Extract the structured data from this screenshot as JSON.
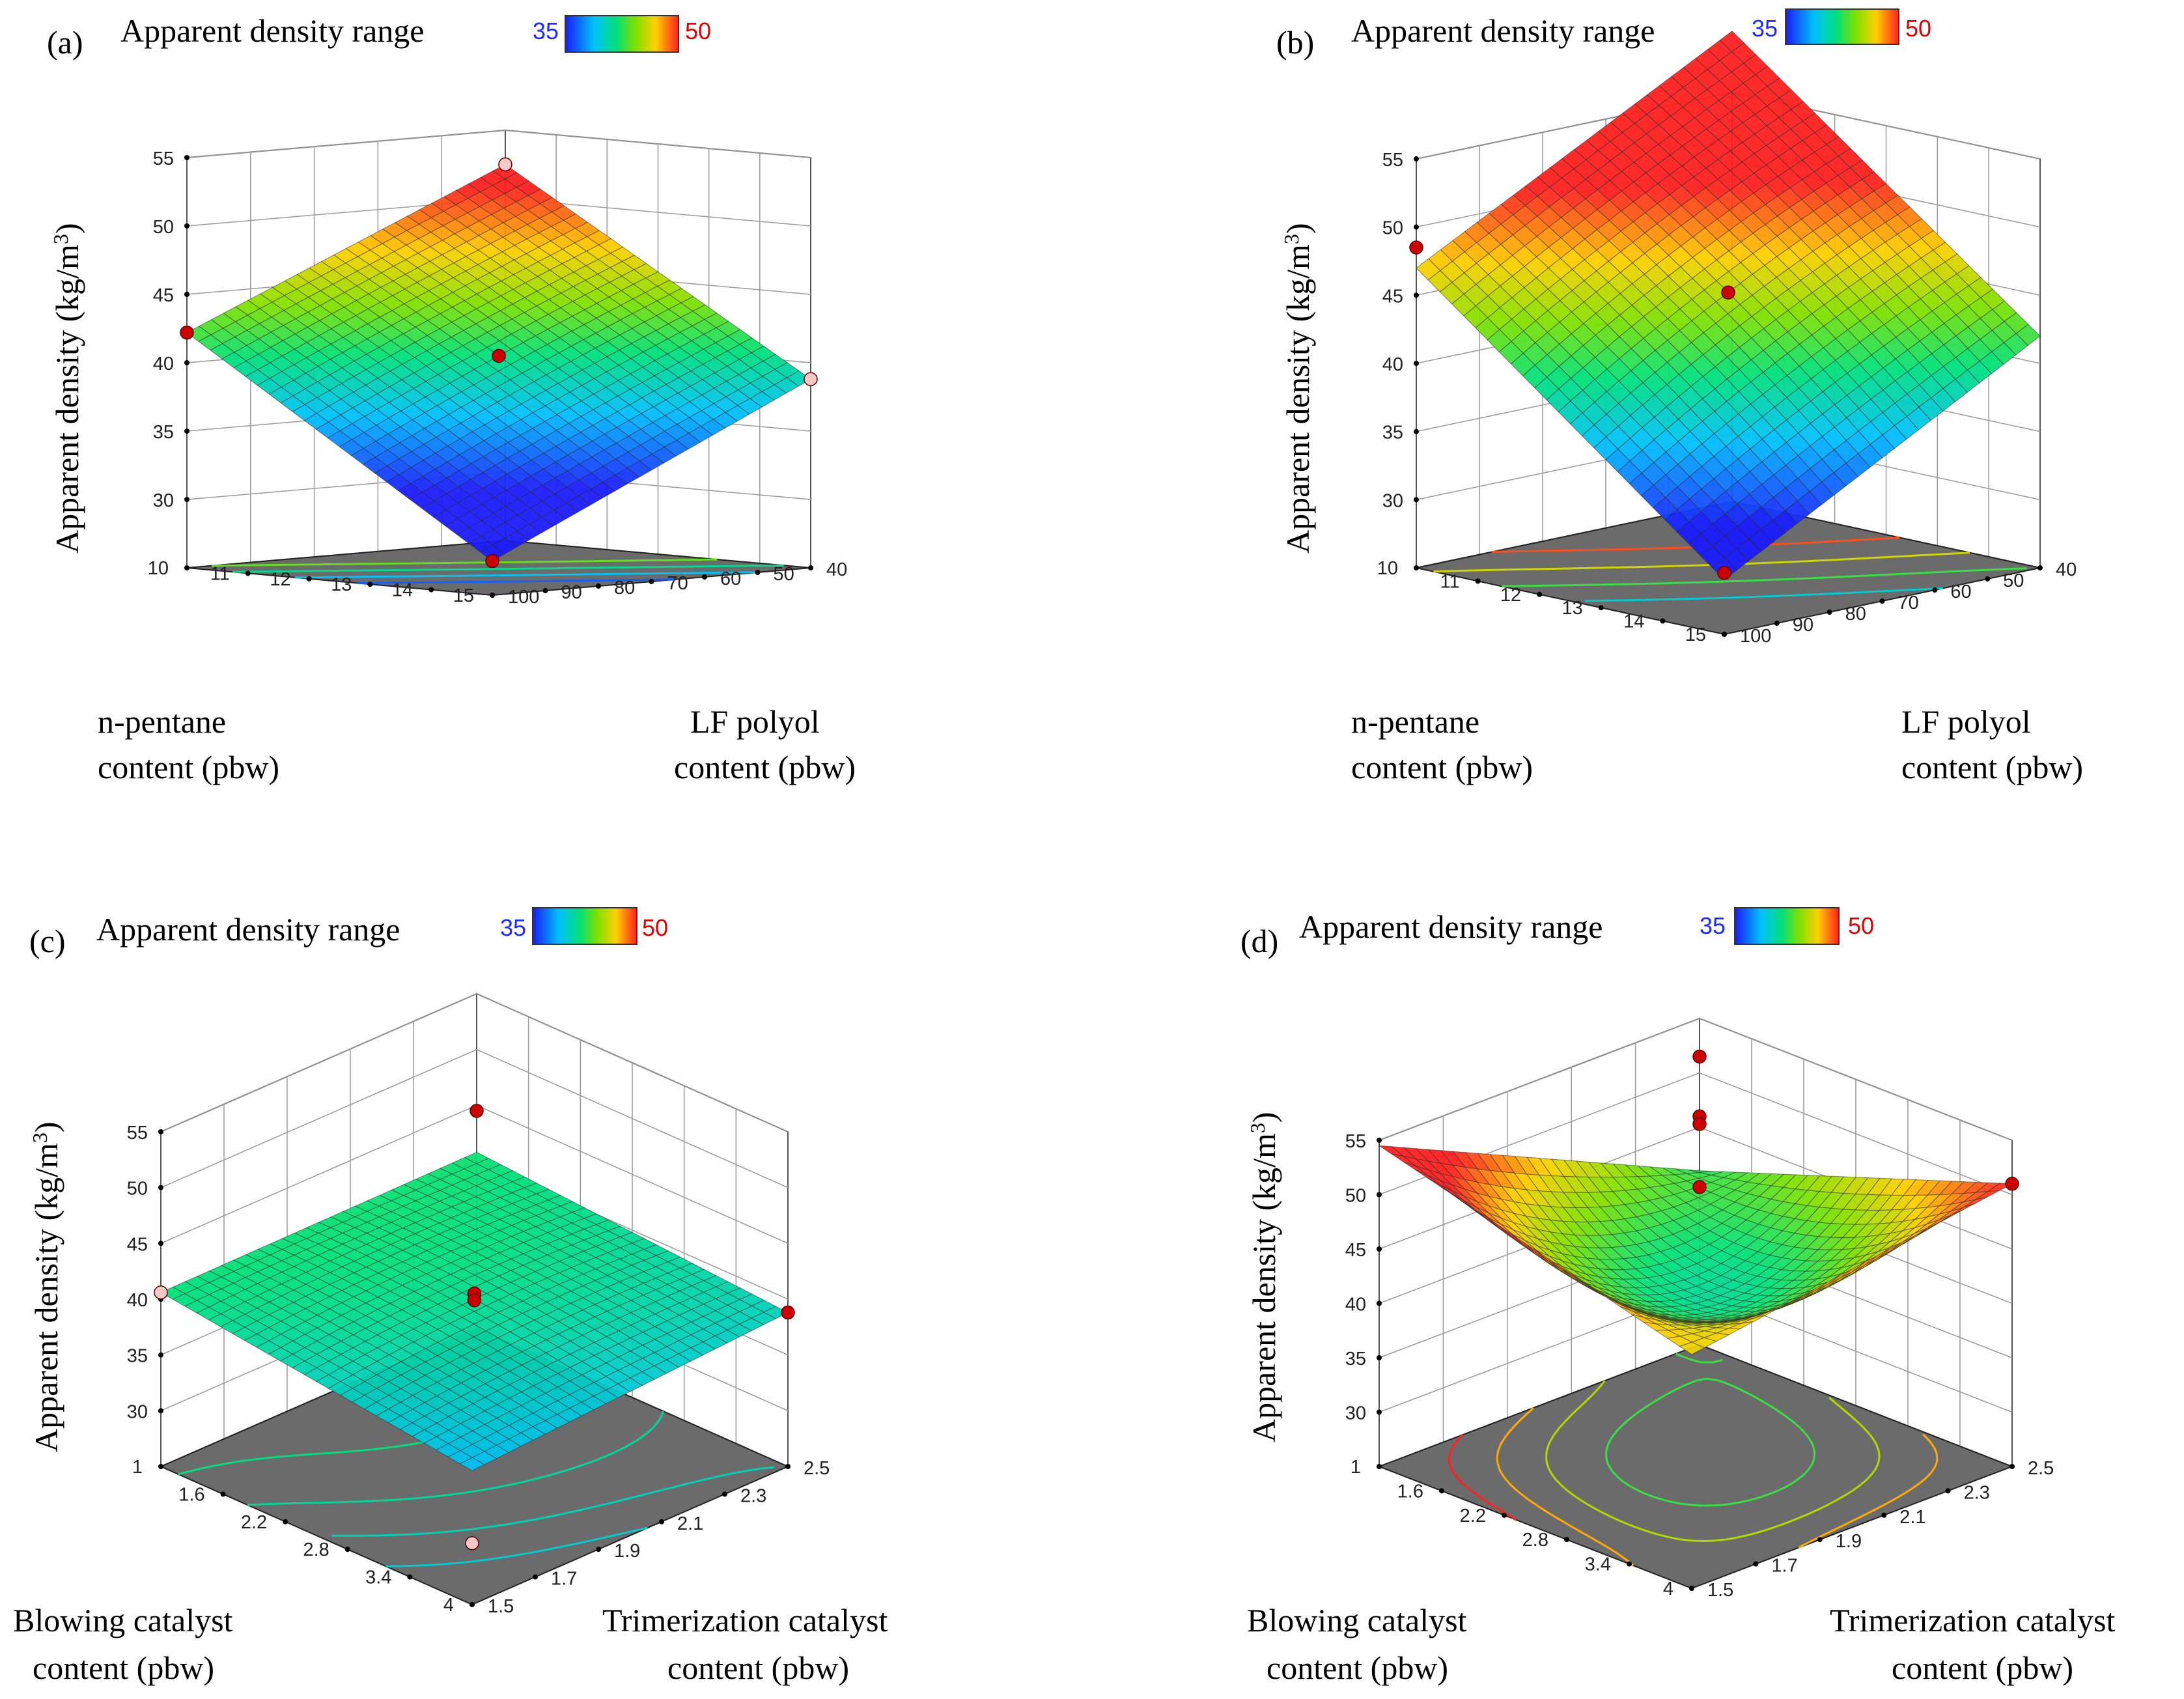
{
  "figure": {
    "colors": {
      "low": "#2035ff",
      "high": "#ff2020",
      "floor": "#6b6b6b",
      "point": "#cc0000",
      "point_light": "#f5c8c8"
    },
    "colorbar_stops": [
      "#1a1aff",
      "#00c0ff",
      "#00e07a",
      "#80e000",
      "#ffd000",
      "#ff2020"
    ]
  },
  "chart_data": [
    {
      "id": "a",
      "type": "surface3d",
      "panel_label": "(a)",
      "range_title": "Apparent density range",
      "range_min": "35",
      "range_max": "50",
      "zlabel_main": "Apparent density (kg/m",
      "zlabel_sup": "3",
      "zlabel_close": ")",
      "z_ticks": [
        "30",
        "35",
        "40",
        "45",
        "50",
        "55"
      ],
      "zlim": [
        25,
        55
      ],
      "left_axis_label": [
        "n-pentane",
        "content (pbw)"
      ],
      "left_ticks": [
        "10",
        "11",
        "12",
        "13",
        "14",
        "15"
      ],
      "right_axis_label": [
        "LF polyol",
        "content (pbw)"
      ],
      "right_ticks": [
        "40",
        "50",
        "60",
        "70",
        "80",
        "90",
        "100"
      ],
      "corners": {
        "back": 52.5,
        "left": 42.2,
        "right": 38.8,
        "front": 27.5
      },
      "center": 40.5,
      "points": [
        {
          "u": 0,
          "v": 0,
          "z": 52.5,
          "light": true
        },
        {
          "u": 1,
          "v": 0,
          "z": 42.2,
          "light": false
        },
        {
          "u": 0,
          "v": 1,
          "z": 38.8,
          "light": true
        },
        {
          "u": 1,
          "v": 1,
          "z": 27.5,
          "light": false
        },
        {
          "u": 0.5,
          "v": 0.5,
          "z": 40.5,
          "light": false
        }
      ],
      "contours": [
        34,
        37,
        40,
        43
      ]
    },
    {
      "id": "b",
      "type": "surface3d",
      "panel_label": "(b)",
      "range_title": "Apparent density range",
      "range_min": "35",
      "range_max": "50",
      "zlabel_main": "Apparent density (kg/m",
      "zlabel_sup": "3",
      "zlabel_close": ")",
      "z_ticks": [
        "30",
        "35",
        "40",
        "45",
        "50",
        "55"
      ],
      "zlim": [
        25,
        55
      ],
      "left_axis_label": [
        "n-pentane",
        "content (pbw)"
      ],
      "left_ticks": [
        "10",
        "11",
        "12",
        "13",
        "14",
        "15"
      ],
      "right_axis_label": [
        "LF polyol",
        "content (pbw)"
      ],
      "right_ticks": [
        "40",
        "50",
        "60",
        "70",
        "80",
        "90",
        "100"
      ],
      "corners": {
        "back": 59.5,
        "left": 47.0,
        "right": 42.0,
        "front": 29.0
      },
      "center": 45.2,
      "points": [
        {
          "u": 1,
          "v": 0,
          "z": 48.5,
          "light": false
        },
        {
          "u": 1,
          "v": 1,
          "z": 29.5,
          "light": false
        },
        {
          "u": 0.5,
          "v": 0.5,
          "z": 45.2,
          "light": false
        }
      ],
      "contours": [
        38,
        42,
        46,
        50
      ]
    },
    {
      "id": "c",
      "type": "surface3d",
      "panel_label": "(c)",
      "range_title": "Apparent density range",
      "range_min": "35",
      "range_max": "50",
      "zlabel_main": "Apparent density (kg/m",
      "zlabel_sup": "3",
      "zlabel_close": ")",
      "z_ticks": [
        "30",
        "35",
        "40",
        "45",
        "50",
        "55"
      ],
      "zlim": [
        25,
        55
      ],
      "left_axis_label": [
        "Blowing catalyst",
        "content (pbw)"
      ],
      "left_ticks": [
        "1",
        "1.6",
        "2.2",
        "2.8",
        "3.4",
        "4"
      ],
      "right_axis_label": [
        "Trimerization catalyst",
        "content (pbw)"
      ],
      "right_ticks": [
        "2.5",
        "2.3",
        "2.1",
        "1.9",
        "1.7",
        "1.5"
      ],
      "corners": {
        "back": 40.8,
        "left": 40.6,
        "right": 38.8,
        "front": 37.0
      },
      "center": 40.0,
      "points": [
        {
          "u": 0,
          "v": 0,
          "z": 44.5,
          "light": false
        },
        {
          "u": 1,
          "v": 0,
          "z": 40.6,
          "light": true
        },
        {
          "u": 0,
          "v": 1,
          "z": 38.8,
          "light": false
        },
        {
          "u": 1,
          "v": 1,
          "z": 30.5,
          "light": true
        },
        {
          "u": 0.5,
          "v": 0.5,
          "z": 40.5,
          "light": false
        },
        {
          "u": 0.5,
          "v": 0.5,
          "z": 39.9,
          "light": false
        }
      ],
      "contours": [
        38.0,
        38.8,
        39.6,
        40.4
      ]
    },
    {
      "id": "d",
      "type": "surface3d",
      "panel_label": "(d)",
      "range_title": "Apparent density range",
      "range_min": "35",
      "range_max": "50",
      "zlabel_main": "Apparent density (kg/m",
      "zlabel_sup": "3",
      "zlabel_close": ")",
      "z_ticks": [
        "30",
        "35",
        "40",
        "45",
        "50",
        "55"
      ],
      "zlim": [
        25,
        55
      ],
      "left_axis_label": [
        "Blowing catalyst",
        "content (pbw)"
      ],
      "left_ticks": [
        "1",
        "1.6",
        "2.2",
        "2.8",
        "3.4",
        "4"
      ],
      "right_axis_label": [
        "Trimerization catalyst",
        "content (pbw)"
      ],
      "right_ticks": [
        "2.5",
        "2.3",
        "2.1",
        "1.9",
        "1.7",
        "1.5"
      ],
      "corners": {
        "back": 41.0,
        "left": 54.5,
        "right": 51.0,
        "front": 46.5
      },
      "center": 40.0,
      "points": [
        {
          "u": 0,
          "v": 0,
          "z": 51.5,
          "light": false
        },
        {
          "u": 0,
          "v": 1,
          "z": 51.0,
          "light": false
        },
        {
          "u": 0,
          "v": 0,
          "z": 46.0,
          "light": false
        },
        {
          "u": 0,
          "v": 0,
          "z": 45.3,
          "light": false
        },
        {
          "u": 0,
          "v": 0,
          "z": 39.5,
          "light": false
        }
      ],
      "contours": [
        42,
        45,
        48,
        51
      ]
    }
  ]
}
